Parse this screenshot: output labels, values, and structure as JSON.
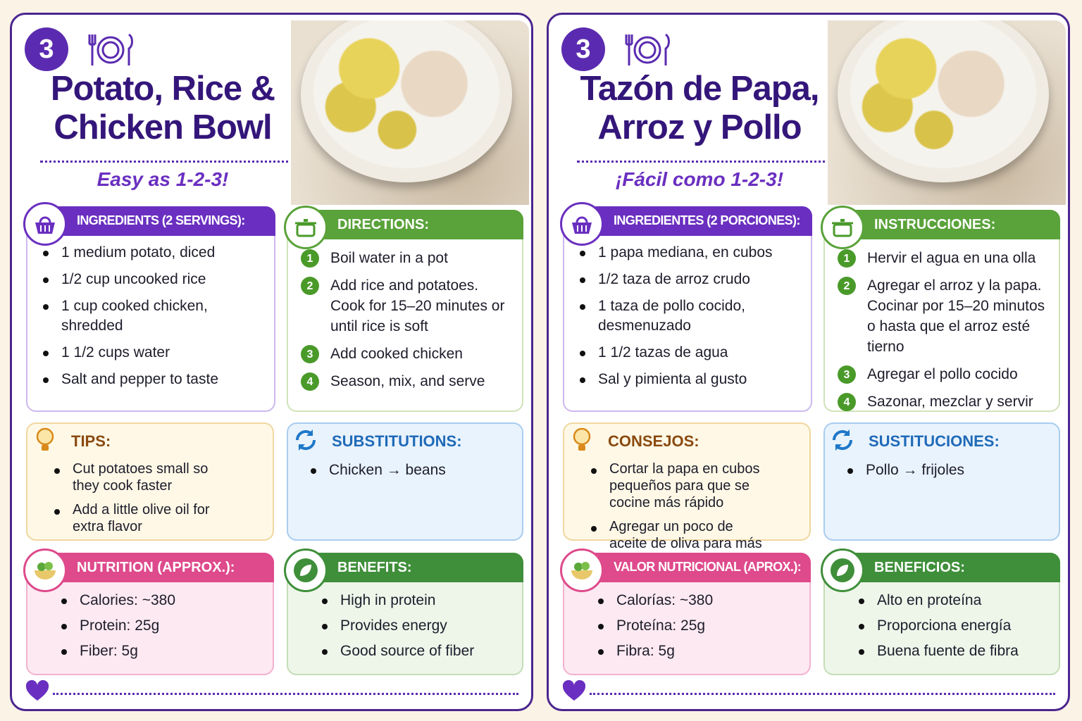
{
  "cards": [
    {
      "badge": "3",
      "title_lines": [
        "Potato, Rice &",
        "Chicken Bowl"
      ],
      "subtitle": "Easy as 1-2-3!",
      "ingredients": {
        "heading": "INGREDIENTS (2 SERVINGS):",
        "items": [
          "1 medium potato, diced",
          "1/2 cup uncooked rice",
          "1 cup cooked chicken, shredded",
          "1 1/2 cups water",
          "Salt and pepper to taste"
        ]
      },
      "directions": {
        "heading": "DIRECTIONS:",
        "steps": [
          {
            "number": 1,
            "text": "Boil water in a pot"
          },
          {
            "number": 2,
            "text": "Add rice and potatoes. Cook for 15–20 minutes or until rice is soft"
          },
          {
            "number": 3,
            "text": "Add cooked chicken"
          },
          {
            "number": 4,
            "text": "Season, mix, and serve"
          }
        ]
      },
      "tips": {
        "heading": "TIPS:",
        "items": [
          "Cut potatoes small so they cook faster",
          "Add a little olive oil for extra flavor"
        ]
      },
      "substitutions": {
        "heading": "SUBSTITUTIONS:",
        "items": [
          "Chicken → beans"
        ]
      },
      "nutrition": {
        "heading": "NUTRITION (APPROX.):",
        "items": [
          "Calories: ~380",
          "Protein: 25g",
          "Fiber: 5g"
        ]
      },
      "benefits": {
        "heading": "BENEFITS:",
        "items": [
          "High in protein",
          "Provides energy",
          "Good source of fiber"
        ]
      }
    },
    {
      "badge": "3",
      "title_lines": [
        "Tazón de Papa,",
        "Arroz y Pollo"
      ],
      "subtitle": "¡Fácil como 1-2-3!",
      "ingredients": {
        "heading": "INGREDIENTES (2 PORCIONES):",
        "items": [
          "1 papa mediana, en cubos",
          "1/2 taza de arroz crudo",
          "1 taza de pollo cocido, desmenuzado",
          "1 1/2 tazas de agua",
          "Sal y pimienta al gusto"
        ]
      },
      "directions": {
        "heading": "INSTRUCCIONES:",
        "steps": [
          {
            "number": 1,
            "text": "Hervir el agua en una olla"
          },
          {
            "number": 2,
            "text": "Agregar el arroz y la papa. Cocinar por 15–20 minutos o hasta que el arroz esté tierno"
          },
          {
            "number": 3,
            "text": "Agregar el pollo cocido"
          },
          {
            "number": 4,
            "text": "Sazonar, mezclar y servir"
          }
        ]
      },
      "tips": {
        "heading": "CONSEJOS:",
        "items": [
          "Cortar la papa en cubos pequeños para que se cocine más rápido",
          "Agregar un poco de aceite de oliva para más sabor"
        ]
      },
      "substitutions": {
        "heading": "SUSTITUCIONES:",
        "items": [
          "Pollo → frijoles"
        ]
      },
      "nutrition": {
        "heading": "VALOR NUTRICIONAL (APROX.):",
        "items": [
          "Calorías: ~380",
          "Proteína: 25g",
          "Fibra: 5g"
        ]
      },
      "benefits": {
        "heading": "BENEFICIOS:",
        "items": [
          "Alto en proteína",
          "Proporciona energía",
          "Buena fuente de fibra"
        ]
      }
    }
  ]
}
